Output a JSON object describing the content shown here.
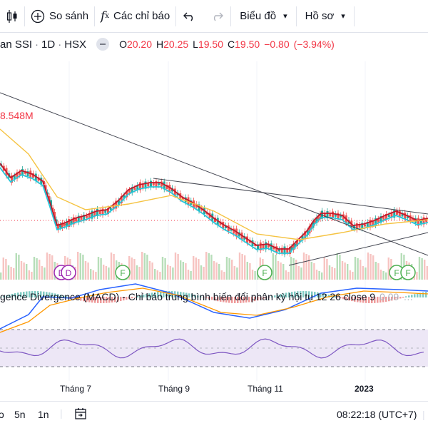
{
  "toolbar": {
    "compare_label": "So sánh",
    "indicators_label": "Các chỉ báo",
    "chart_type_label": "Biểu đồ",
    "profile_label": "Hồ sơ"
  },
  "legend": {
    "symbol": "an SSI",
    "interval": "1D",
    "exchange": "HSX",
    "open_key": "O",
    "open": "20.20",
    "high_key": "H",
    "high": "20.25",
    "low_key": "L",
    "low": "19.50",
    "close_key": "C",
    "close": "19.50",
    "change": "−0.80",
    "change_pct": "(−3.94%)"
  },
  "volume_label": "8.548M",
  "macd": {
    "title": "gence Divergence (MACD) - Chỉ báo trung bình biến đổi phân kỳ hội tụ 12 26 close 9",
    "value": "0.09"
  },
  "time_axis": {
    "labels": [
      "Tháng 7",
      "Tháng 9",
      "Tháng 11",
      "2023"
    ]
  },
  "markers": {
    "earnings_letter": "F",
    "dividend_letter": "D"
  },
  "bottom": {
    "range_5d": "5n",
    "range_1d": "1n",
    "clock": "08:22:18 (UTC+7)",
    "first_fragment": "o"
  },
  "colors": {
    "up": "#26a69a",
    "down": "#ef5350",
    "accent_red": "#f23645",
    "sma_red": "#c0182b",
    "ema_cyan": "#26c6da",
    "ema_yellow": "#f5c342",
    "macd_blue": "#2962ff",
    "rsi_purple": "#7e57c2"
  }
}
